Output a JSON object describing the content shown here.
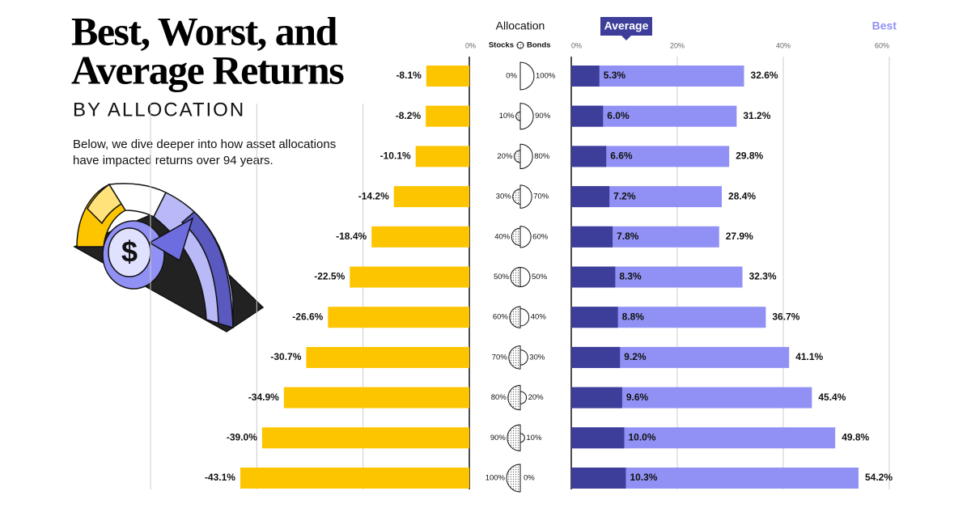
{
  "title": [
    "Best, Worst, and",
    "Average Returns"
  ],
  "subtitle": "BY ALLOCATION",
  "description": [
    "Below, we dive deeper into how asset allocations",
    "have impacted returns over 94 years."
  ],
  "chart_data": {
    "type": "bar",
    "allocation_label": "Allocation",
    "stocks_label": "Stocks",
    "bonds_label": "Bonds",
    "stocks": [
      0,
      10,
      20,
      30,
      40,
      50,
      60,
      70,
      80,
      90,
      100
    ],
    "stocks_labels": [
      "0%",
      "10%",
      "20%",
      "30%",
      "40%",
      "50%",
      "60%",
      "70%",
      "80%",
      "90%",
      "100%"
    ],
    "bonds": [
      100,
      90,
      80,
      70,
      60,
      50,
      40,
      30,
      20,
      10,
      0
    ],
    "bonds_labels": [
      "100%",
      "90%",
      "80%",
      "70%",
      "60%",
      "50%",
      "40%",
      "30%",
      "20%",
      "10%",
      "0%"
    ],
    "worst": {
      "color": "#fdc500",
      "values": [
        -8.1,
        -8.2,
        -10.1,
        -14.2,
        -18.4,
        -22.5,
        -26.6,
        -30.7,
        -34.9,
        -39.0,
        -43.1
      ],
      "value_labels": [
        "-8.1%",
        "-8.2%",
        "-10.1%",
        "-14.2%",
        "-18.4%",
        "-22.5%",
        "-26.6%",
        "-30.7%",
        "-34.9%",
        "-39.0%",
        "-43.1%"
      ],
      "xlim": [
        -60,
        0
      ],
      "xticks": [
        {
          "value": 0,
          "label": "0%"
        }
      ],
      "grid": [
        -20,
        -40,
        -60
      ]
    },
    "series": [
      {
        "name": "Average",
        "color": "#3d3d9a",
        "values": [
          5.3,
          6.0,
          6.6,
          7.2,
          7.8,
          8.3,
          8.8,
          9.2,
          9.6,
          10.0,
          10.3
        ],
        "value_labels": [
          "5.3%",
          "6.0%",
          "6.6%",
          "7.2%",
          "7.8%",
          "8.3%",
          "8.8%",
          "9.2%",
          "9.6%",
          "10.0%",
          "10.3%"
        ]
      },
      {
        "name": "Best",
        "color": "#9191f5",
        "values": [
          32.6,
          31.2,
          29.8,
          28.4,
          27.9,
          32.3,
          36.7,
          41.1,
          45.4,
          49.8,
          54.2
        ],
        "value_labels": [
          "32.6%",
          "31.2%",
          "29.8%",
          "28.4%",
          "27.9%",
          "32.3%",
          "36.7%",
          "41.1%",
          "45.4%",
          "49.8%",
          "54.2%"
        ]
      }
    ],
    "xlim": [
      0,
      60
    ],
    "xticks": [
      {
        "value": 0,
        "label": "0%"
      },
      {
        "value": 20,
        "label": "20%"
      },
      {
        "value": 40,
        "label": "40%"
      },
      {
        "value": 60,
        "label": "60%"
      }
    ],
    "grid": true
  }
}
